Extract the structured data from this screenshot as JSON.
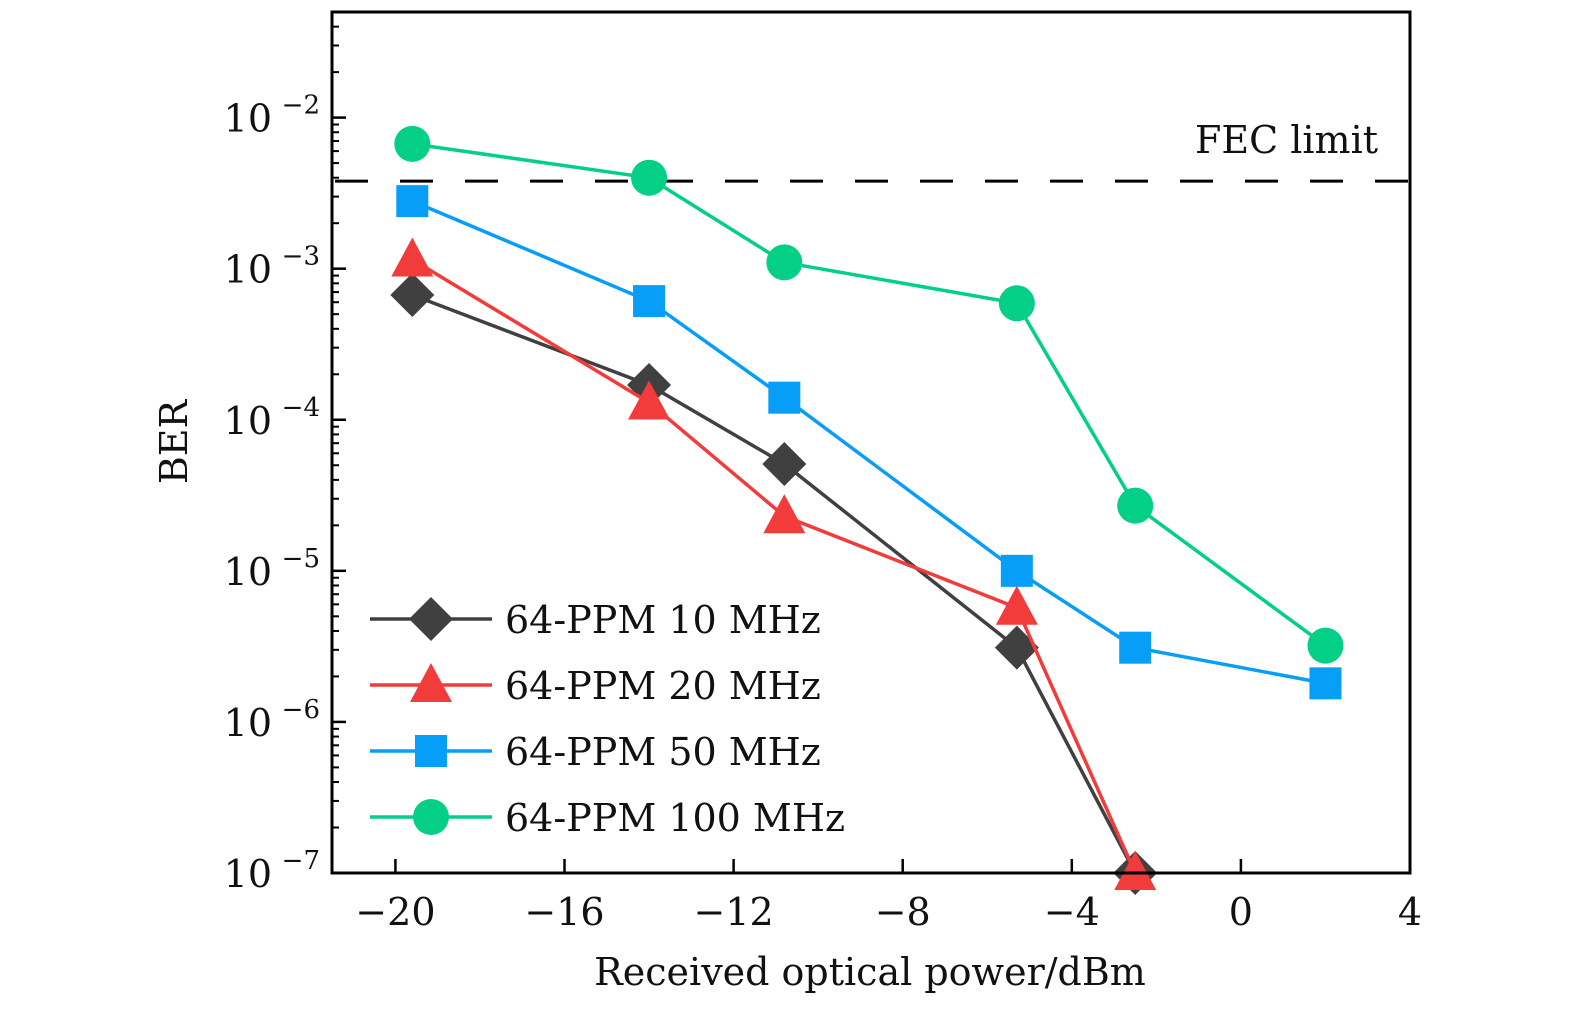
{
  "chart_data": {
    "type": "line",
    "title": "",
    "xlabel": "Received optical power/dBm",
    "ylabel": "BER",
    "xlim": [
      -21.5,
      4
    ],
    "ylim": [
      1e-07,
      0.05
    ],
    "yscale": "log",
    "xticks": [
      -20,
      -16,
      -12,
      -8,
      -4,
      0,
      4
    ],
    "xtick_labels": [
      "−20",
      "−16",
      "−12",
      "−8",
      "−4",
      "0",
      "4"
    ],
    "yticks": [
      1e-07,
      1e-06,
      1e-05,
      0.0001,
      0.001,
      0.01
    ],
    "ytick_labels": [
      {
        "base": "10",
        "exp": "−7"
      },
      {
        "base": "10",
        "exp": "−6"
      },
      {
        "base": "10",
        "exp": "−5"
      },
      {
        "base": "10",
        "exp": "−4"
      },
      {
        "base": "10",
        "exp": "−3"
      },
      {
        "base": "10",
        "exp": "−2"
      }
    ],
    "grid": false,
    "legend_position": "bottom-left",
    "reference_lines": [
      {
        "name": "FEC limit",
        "y": 0.0038,
        "style": "dashed",
        "color": "#000000",
        "label": "FEC limit"
      }
    ],
    "series": [
      {
        "name": "64-PPM 10 MHz",
        "marker": "diamond",
        "color": "#404040",
        "x": [
          -19.6,
          -14.0,
          -10.8,
          -5.3,
          -2.5
        ],
        "values": [
          0.00067,
          0.00017,
          5.1e-05,
          3.1e-06,
          1e-07
        ]
      },
      {
        "name": "64-PPM 20 MHz",
        "marker": "triangle",
        "color": "#f23c3c",
        "x": [
          -19.6,
          -14.0,
          -10.8,
          -5.3,
          -2.5
        ],
        "values": [
          0.00115,
          0.00013,
          2.3e-05,
          5.7e-06,
          1e-07
        ]
      },
      {
        "name": "64-PPM 50 MHz",
        "marker": "square",
        "color": "#079ef8",
        "x": [
          -19.6,
          -14.0,
          -10.8,
          -5.3,
          -2.5,
          2.0
        ],
        "values": [
          0.0028,
          0.00061,
          0.00014,
          1e-05,
          3.1e-06,
          1.8e-06
        ]
      },
      {
        "name": "64-PPM 100 MHz",
        "marker": "circle",
        "color": "#04cf86",
        "x": [
          -19.6,
          -14.0,
          -10.8,
          -5.3,
          -2.5,
          2.0
        ],
        "values": [
          0.0067,
          0.004,
          0.0011,
          0.00059,
          2.7e-05,
          3.2e-06
        ]
      }
    ]
  }
}
